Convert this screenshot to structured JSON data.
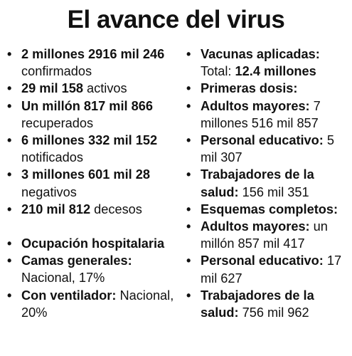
{
  "title": "El avance del virus",
  "bullet_char": "•",
  "left_column": [
    {
      "bold": "2 millones 2916 mil 246",
      "normal": " confirmados"
    },
    {
      "bold": "29 mil 158",
      "normal": " activos"
    },
    {
      "bold": "Un millón 817 mil 866",
      "normal": " recuperados"
    },
    {
      "bold": "6 millones 332 mil 152",
      "normal": " notificados"
    },
    {
      "bold": "3 millones 601 mil 28",
      "normal": " negativos"
    },
    {
      "bold": "210 mil 812",
      "normal": " decesos"
    }
  ],
  "left_column_lower": [
    {
      "bold": "Ocupación hospitalaria",
      "normal": ""
    },
    {
      "bold": "Camas generales:",
      "normal": " Nacional, 17%"
    },
    {
      "bold": "Con ventilador:",
      "normal": " Nacional, 20%"
    }
  ],
  "right_column": [
    {
      "bold": "Vacunas aplicadas:",
      "normal": " Total: ",
      "bold2": "12.4 millones"
    },
    {
      "bold": "Primeras dosis:",
      "normal": ""
    },
    {
      "bold": "Adultos mayores:",
      "normal": " 7 millones 516 mil 857"
    },
    {
      "bold": "Personal educativo:",
      "normal": " 5 mil 307"
    },
    {
      "bold": "Trabajadores de la salud:",
      "normal": " 156 mil 351"
    },
    {
      "bold": "Esquemas completos:",
      "normal": ""
    },
    {
      "bold": "Adultos mayores:",
      "normal": " un millón 857 mil 417"
    },
    {
      "bold": "Personal educativo:",
      "normal": " 17 mil 627"
    },
    {
      "bold": "Trabajadores de la salud:",
      "normal": " 756 mil 962"
    }
  ]
}
